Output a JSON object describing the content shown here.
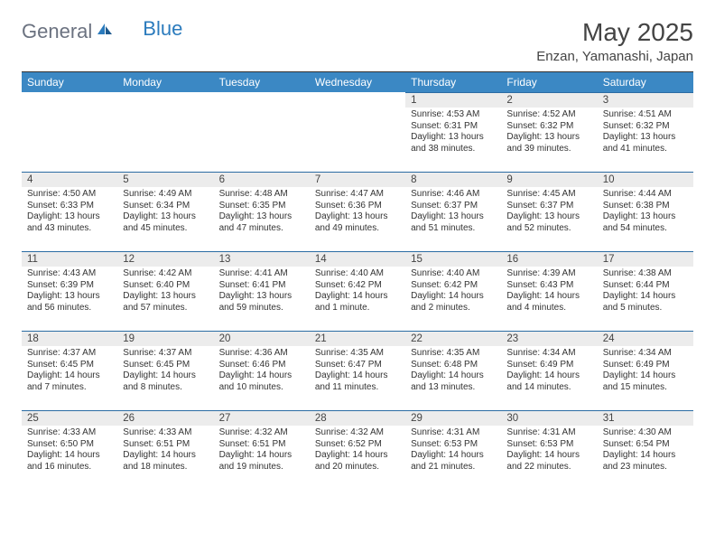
{
  "brand": {
    "part1": "General",
    "part2": "Blue"
  },
  "title": "May 2025",
  "location": "Enzan, Yamanashi, Japan",
  "colors": {
    "header_bg": "#3b88c4",
    "header_text": "#ffffff",
    "daynum_bg": "#ececec",
    "border": "#2b6ca3",
    "text": "#333333",
    "logo_gray": "#6b7280",
    "logo_blue": "#2b7bbd",
    "page_bg": "#ffffff"
  },
  "dow": [
    "Sunday",
    "Monday",
    "Tuesday",
    "Wednesday",
    "Thursday",
    "Friday",
    "Saturday"
  ],
  "weeks": [
    [
      null,
      null,
      null,
      null,
      {
        "n": "1",
        "sr": "4:53 AM",
        "ss": "6:31 PM",
        "dl": "13 hours and 38 minutes."
      },
      {
        "n": "2",
        "sr": "4:52 AM",
        "ss": "6:32 PM",
        "dl": "13 hours and 39 minutes."
      },
      {
        "n": "3",
        "sr": "4:51 AM",
        "ss": "6:32 PM",
        "dl": "13 hours and 41 minutes."
      }
    ],
    [
      {
        "n": "4",
        "sr": "4:50 AM",
        "ss": "6:33 PM",
        "dl": "13 hours and 43 minutes."
      },
      {
        "n": "5",
        "sr": "4:49 AM",
        "ss": "6:34 PM",
        "dl": "13 hours and 45 minutes."
      },
      {
        "n": "6",
        "sr": "4:48 AM",
        "ss": "6:35 PM",
        "dl": "13 hours and 47 minutes."
      },
      {
        "n": "7",
        "sr": "4:47 AM",
        "ss": "6:36 PM",
        "dl": "13 hours and 49 minutes."
      },
      {
        "n": "8",
        "sr": "4:46 AM",
        "ss": "6:37 PM",
        "dl": "13 hours and 51 minutes."
      },
      {
        "n": "9",
        "sr": "4:45 AM",
        "ss": "6:37 PM",
        "dl": "13 hours and 52 minutes."
      },
      {
        "n": "10",
        "sr": "4:44 AM",
        "ss": "6:38 PM",
        "dl": "13 hours and 54 minutes."
      }
    ],
    [
      {
        "n": "11",
        "sr": "4:43 AM",
        "ss": "6:39 PM",
        "dl": "13 hours and 56 minutes."
      },
      {
        "n": "12",
        "sr": "4:42 AM",
        "ss": "6:40 PM",
        "dl": "13 hours and 57 minutes."
      },
      {
        "n": "13",
        "sr": "4:41 AM",
        "ss": "6:41 PM",
        "dl": "13 hours and 59 minutes."
      },
      {
        "n": "14",
        "sr": "4:40 AM",
        "ss": "6:42 PM",
        "dl": "14 hours and 1 minute."
      },
      {
        "n": "15",
        "sr": "4:40 AM",
        "ss": "6:42 PM",
        "dl": "14 hours and 2 minutes."
      },
      {
        "n": "16",
        "sr": "4:39 AM",
        "ss": "6:43 PM",
        "dl": "14 hours and 4 minutes."
      },
      {
        "n": "17",
        "sr": "4:38 AM",
        "ss": "6:44 PM",
        "dl": "14 hours and 5 minutes."
      }
    ],
    [
      {
        "n": "18",
        "sr": "4:37 AM",
        "ss": "6:45 PM",
        "dl": "14 hours and 7 minutes."
      },
      {
        "n": "19",
        "sr": "4:37 AM",
        "ss": "6:45 PM",
        "dl": "14 hours and 8 minutes."
      },
      {
        "n": "20",
        "sr": "4:36 AM",
        "ss": "6:46 PM",
        "dl": "14 hours and 10 minutes."
      },
      {
        "n": "21",
        "sr": "4:35 AM",
        "ss": "6:47 PM",
        "dl": "14 hours and 11 minutes."
      },
      {
        "n": "22",
        "sr": "4:35 AM",
        "ss": "6:48 PM",
        "dl": "14 hours and 13 minutes."
      },
      {
        "n": "23",
        "sr": "4:34 AM",
        "ss": "6:49 PM",
        "dl": "14 hours and 14 minutes."
      },
      {
        "n": "24",
        "sr": "4:34 AM",
        "ss": "6:49 PM",
        "dl": "14 hours and 15 minutes."
      }
    ],
    [
      {
        "n": "25",
        "sr": "4:33 AM",
        "ss": "6:50 PM",
        "dl": "14 hours and 16 minutes."
      },
      {
        "n": "26",
        "sr": "4:33 AM",
        "ss": "6:51 PM",
        "dl": "14 hours and 18 minutes."
      },
      {
        "n": "27",
        "sr": "4:32 AM",
        "ss": "6:51 PM",
        "dl": "14 hours and 19 minutes."
      },
      {
        "n": "28",
        "sr": "4:32 AM",
        "ss": "6:52 PM",
        "dl": "14 hours and 20 minutes."
      },
      {
        "n": "29",
        "sr": "4:31 AM",
        "ss": "6:53 PM",
        "dl": "14 hours and 21 minutes."
      },
      {
        "n": "30",
        "sr": "4:31 AM",
        "ss": "6:53 PM",
        "dl": "14 hours and 22 minutes."
      },
      {
        "n": "31",
        "sr": "4:30 AM",
        "ss": "6:54 PM",
        "dl": "14 hours and 23 minutes."
      }
    ]
  ],
  "labels": {
    "sunrise": "Sunrise:",
    "sunset": "Sunset:",
    "daylight": "Daylight:"
  }
}
